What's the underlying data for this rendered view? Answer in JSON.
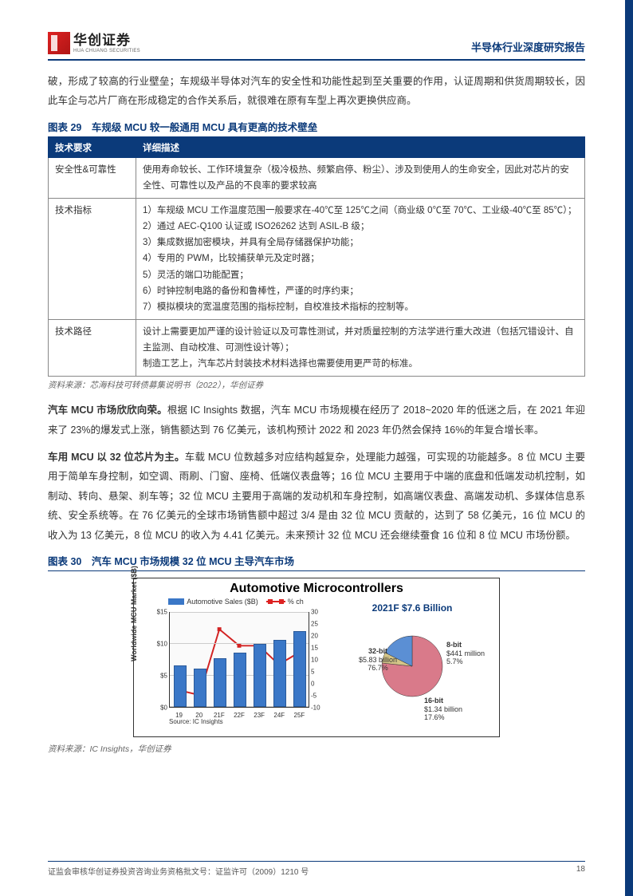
{
  "header": {
    "logo_cn": "华创证券",
    "logo_en": "HUA CHUANG SECURITIES",
    "doc_title": "半导体行业深度研究报告"
  },
  "para1": "破，形成了较高的行业壁垒；车规级半导体对汽车的安全性和功能性起到至关重要的作用，认证周期和供货周期较长，因此车企与芯片厂商在形成稳定的合作关系后，就很难在原有车型上再次更换供应商。",
  "table29": {
    "title": "图表 29　车规级 MCU 较一般通用 MCU 具有更高的技术壁垒",
    "columns": [
      "技术要求",
      "详细描述"
    ],
    "rows": [
      [
        "安全性&可靠性",
        "使用寿命较长、工作环境复杂（极冷极热、频繁启停、粉尘）、涉及到使用人的生命安全，因此对芯片的安全性、可靠性以及产品的不良率的要求较高"
      ],
      [
        "技术指标",
        "1）车规级 MCU 工作温度范围一般要求在-40℃至 125℃之间（商业级 0℃至 70℃、工业级-40℃至 85℃）；\n2）通过 AEC-Q100 认证或 ISO26262 达到 ASIL-B 级；\n3）集成数据加密模块，并具有全局存储器保护功能；\n4）专用的 PWM，比较捕获单元及定时器；\n5）灵活的端口功能配置；\n6）时钟控制电路的备份和鲁棒性，严谨的时序约束；\n7）模拟模块的宽温度范围的指标控制，自校准技术指标的控制等。"
      ],
      [
        "技术路径",
        "设计上需要更加严谨的设计验证以及可靠性测试，并对质量控制的方法学进行重大改进（包括冗错设计、自主监测、自动校准、可测性设计等）；\n制造工艺上，汽车芯片封装技术材料选择也需要使用更严苛的标准。"
      ]
    ],
    "source": "资料来源：芯海科技可转债募集说明书（2022），华创证券"
  },
  "para2_bold": "汽车 MCU 市场欣欣向荣。",
  "para2": "根据 IC Insights 数据，汽车 MCU 市场规模在经历了 2018~2020 年的低迷之后，在 2021 年迎来了 23%的爆发式上涨，销售额达到 76 亿美元，该机构预计 2022 和 2023 年仍然会保持 16%的年复合增长率。",
  "para3_bold": "车用 MCU 以 32 位芯片为主。",
  "para3": "车载 MCU 位数越多对应结构越复杂，处理能力越强，可实现的功能越多。8 位 MCU 主要用于简单车身控制，如空调、雨刷、门窗、座椅、低端仪表盘等；16 位 MCU 主要用于中端的底盘和低端发动机控制，如制动、转向、悬架、刹车等；32 位 MCU 主要用于高端的发动机和车身控制，如高端仪表盘、高端发动机、多媒体信息系统、安全系统等。在 76 亿美元的全球市场销售额中超过 3/4 是由 32 位 MCU 贡献的，达到了 58 亿美元，16 位 MCU 的收入为 13 亿美元，8 位 MCU 的收入为 4.41 亿美元。未来预计 32 位 MCU 还会继续蚕食 16 位和 8 位 MCU 市场份额。",
  "chart30": {
    "title": "图表 30　汽车 MCU 市场规模 32 位 MCU 主导汽车市场",
    "chart_title": "Automotive Microcontrollers",
    "legend_bar": "Automotive Sales ($B)",
    "legend_line": "% ch",
    "y_left_label": "Worldwide MCU Market ($B)",
    "y_left_ticks": [
      "$0",
      "$5",
      "$10",
      "$15"
    ],
    "y_left_max": 15,
    "y_right_ticks": [
      "-10",
      "-5",
      "0",
      "5",
      "10",
      "15",
      "20",
      "25",
      "30"
    ],
    "y_right_min": -10,
    "y_right_max": 30,
    "x_labels": [
      "19",
      "20",
      "21F",
      "22F",
      "23F",
      "24F",
      "25F"
    ],
    "bar_values": [
      6.5,
      6.0,
      7.6,
      8.5,
      9.8,
      10.5,
      11.8
    ],
    "line_values": [
      -3,
      -5,
      23,
      16,
      16,
      8,
      13
    ],
    "bar_color": "#3a77c7",
    "line_color": "#d22222",
    "grid_color": "#cccccc",
    "chart_source": "Source: IC Insights",
    "pie_title": "2021F $7.6 Billion",
    "pie_slices": [
      {
        "name": "32-bit",
        "value": 76.7,
        "amount": "$5.83 billion",
        "color": "#d97a8a"
      },
      {
        "name": "8-bit",
        "value": 5.7,
        "amount": "$441 million",
        "color": "#d4c588"
      },
      {
        "name": "16-bit",
        "value": 17.6,
        "amount": "$1.34 billion",
        "color": "#5b8fd4"
      }
    ],
    "source": "资料来源：IC Insights，华创证券"
  },
  "footer": {
    "left": "证监会审核华创证券投资咨询业务资格批文号：证监许可（2009）1210 号",
    "page": "18"
  }
}
